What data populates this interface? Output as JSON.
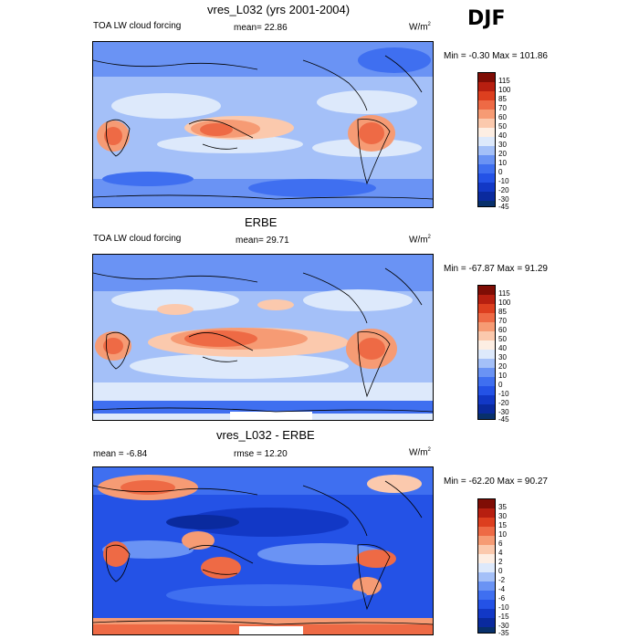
{
  "season": "DJF",
  "colors": {
    "scale": [
      "#08306b",
      "#1238c6",
      "#2452e6",
      "#3f6ff0",
      "#6a93f4",
      "#a4c0f8",
      "#dde9fb",
      "#fdeee3",
      "#fbc9ad",
      "#f69b74",
      "#ee6a45",
      "#dd3f1f",
      "#b71f10",
      "#7f0d05"
    ]
  },
  "panels": [
    {
      "title": "vres_L032 (yrs 2001-2004)",
      "left_label": "TOA LW cloud forcing",
      "mean_text": "mean=  22.86",
      "units": "W/m",
      "units_sup": "2",
      "minmax": "Min =  -0.30 Max = 101.86",
      "levels": [
        "115",
        "100",
        "85",
        "70",
        "60",
        "50",
        "40",
        "30",
        "20",
        "10",
        "0",
        "-10",
        "-20",
        "-30",
        "-45"
      ]
    },
    {
      "title": "ERBE",
      "left_label": "TOA LW cloud forcing",
      "mean_text": "mean=  29.71",
      "units": "W/m",
      "units_sup": "2",
      "minmax": "Min = -67.87 Max =  91.29",
      "levels": [
        "115",
        "100",
        "85",
        "70",
        "60",
        "50",
        "40",
        "30",
        "20",
        "10",
        "0",
        "-10",
        "-20",
        "-30",
        "-45"
      ]
    },
    {
      "title": "vres_L032 - ERBE",
      "left_label": "mean =  -6.84",
      "mean_text": "rmse =  12.20",
      "units": "W/m",
      "units_sup": "2",
      "minmax": "Min = -62.20 Max =  90.27",
      "levels": [
        "35",
        "30",
        "15",
        "10",
        "6",
        "4",
        "2",
        "0",
        "-2",
        "-4",
        "-6",
        "-10",
        "-15",
        "-30",
        "-35"
      ]
    }
  ]
}
